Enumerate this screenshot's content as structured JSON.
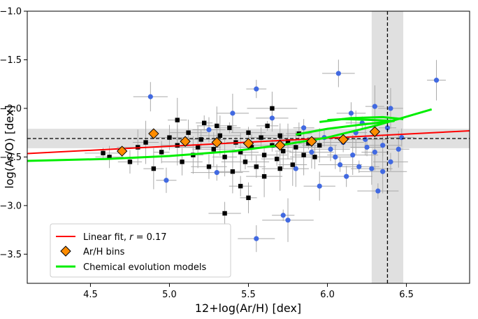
{
  "chart_data": {
    "type": "scatter",
    "xlabel": "12+log(Ar/H) [dex]",
    "ylabel": "log(Ar/O) [dex]",
    "xlim": [
      4.1,
      6.9
    ],
    "ylim": [
      -3.8,
      -1.0
    ],
    "xticks": [
      4.5,
      5.0,
      5.5,
      6.0,
      6.5
    ],
    "xtick_labels": [
      "4.5",
      "5.0",
      "5.5",
      "6.0",
      "6.5"
    ],
    "yticks": [
      -1.0,
      -1.5,
      -2.0,
      -2.5,
      -3.0,
      -3.5
    ],
    "ytick_labels": [
      "−1.0",
      "−1.5",
      "−2.0",
      "−2.5",
      "−3.0",
      "−3.5"
    ],
    "solar_reference": {
      "ar_h": 6.38,
      "ar_h_band": [
        6.28,
        6.48
      ],
      "ar_o": -2.31,
      "ar_o_band": [
        -2.41,
        -2.21
      ]
    },
    "linear_fit": {
      "name": "Linear fit, r = 0.17",
      "slope": 0.0835,
      "intercept": -2.807,
      "x_range": [
        4.1,
        6.9
      ]
    },
    "ar_h_bins": {
      "name": "Ar/H bins",
      "points": [
        {
          "x": 4.7,
          "y": -2.44
        },
        {
          "x": 4.9,
          "y": -2.26
        },
        {
          "x": 5.1,
          "y": -2.34
        },
        {
          "x": 5.3,
          "y": -2.35
        },
        {
          "x": 5.5,
          "y": -2.36
        },
        {
          "x": 5.7,
          "y": -2.38
        },
        {
          "x": 5.9,
          "y": -2.34
        },
        {
          "x": 6.1,
          "y": -2.32
        },
        {
          "x": 6.3,
          "y": -2.24
        }
      ]
    },
    "chemical_evolution_models": {
      "name": "Chemical evolution models",
      "tracks": [
        [
          [
            4.1,
            -2.54
          ],
          [
            4.6,
            -2.52
          ],
          [
            5.0,
            -2.49
          ],
          [
            5.4,
            -2.44
          ],
          [
            5.7,
            -2.38
          ],
          [
            6.0,
            -2.3
          ],
          [
            6.3,
            -2.18
          ],
          [
            6.66,
            -2.01
          ]
        ],
        [
          [
            5.8,
            -2.27
          ],
          [
            6.0,
            -2.21
          ],
          [
            6.2,
            -2.17
          ],
          [
            6.42,
            -2.13
          ],
          [
            6.3,
            -2.12
          ],
          [
            6.1,
            -2.11
          ],
          [
            6.0,
            -2.12
          ]
        ],
        [
          [
            5.95,
            -2.14
          ],
          [
            6.15,
            -2.1
          ],
          [
            6.35,
            -2.09
          ],
          [
            6.48,
            -2.11
          ]
        ]
      ]
    },
    "sample_points_blue": [
      {
        "x": 4.88,
        "y": -1.88
      },
      {
        "x": 5.55,
        "y": -1.8
      },
      {
        "x": 6.07,
        "y": -1.64
      },
      {
        "x": 6.69,
        "y": -1.71
      },
      {
        "x": 6.05,
        "y": -2.5
      },
      {
        "x": 6.3,
        "y": -2.45
      },
      {
        "x": 6.2,
        "y": -2.6
      },
      {
        "x": 6.4,
        "y": -2.55
      },
      {
        "x": 6.32,
        "y": -2.85
      },
      {
        "x": 5.55,
        "y": -3.34
      },
      {
        "x": 5.72,
        "y": -3.1
      },
      {
        "x": 5.75,
        "y": -3.15
      },
      {
        "x": 4.98,
        "y": -2.74
      },
      {
        "x": 5.3,
        "y": -2.66
      },
      {
        "x": 5.95,
        "y": -2.8
      },
      {
        "x": 6.1,
        "y": -2.35
      },
      {
        "x": 6.18,
        "y": -2.25
      },
      {
        "x": 6.25,
        "y": -2.4
      },
      {
        "x": 6.35,
        "y": -2.38
      },
      {
        "x": 6.45,
        "y": -2.42
      },
      {
        "x": 6.15,
        "y": -2.05
      },
      {
        "x": 6.3,
        "y": -1.98
      },
      {
        "x": 6.4,
        "y": -2.0
      },
      {
        "x": 5.98,
        "y": -2.3
      },
      {
        "x": 6.02,
        "y": -2.42
      },
      {
        "x": 5.9,
        "y": -2.45
      },
      {
        "x": 5.85,
        "y": -2.2
      },
      {
        "x": 6.22,
        "y": -2.15
      },
      {
        "x": 6.38,
        "y": -2.2
      },
      {
        "x": 6.28,
        "y": -2.62
      },
      {
        "x": 6.12,
        "y": -2.7
      },
      {
        "x": 5.65,
        "y": -2.1
      },
      {
        "x": 5.4,
        "y": -2.05
      },
      {
        "x": 5.25,
        "y": -2.22
      },
      {
        "x": 6.47,
        "y": -2.3
      },
      {
        "x": 6.08,
        "y": -2.58
      },
      {
        "x": 5.8,
        "y": -2.62
      },
      {
        "x": 6.35,
        "y": -2.65
      },
      {
        "x": 6.16,
        "y": -2.48
      },
      {
        "x": 6.24,
        "y": -2.32
      }
    ],
    "sample_points_black": [
      {
        "x": 4.58,
        "y": -2.46
      },
      {
        "x": 4.62,
        "y": -2.5
      },
      {
        "x": 4.75,
        "y": -2.55
      },
      {
        "x": 4.8,
        "y": -2.4
      },
      {
        "x": 4.85,
        "y": -2.35
      },
      {
        "x": 4.95,
        "y": -2.45
      },
      {
        "x": 5.0,
        "y": -2.3
      },
      {
        "x": 5.05,
        "y": -2.12
      },
      {
        "x": 5.05,
        "y": -2.38
      },
      {
        "x": 5.12,
        "y": -2.25
      },
      {
        "x": 5.15,
        "y": -2.48
      },
      {
        "x": 5.2,
        "y": -2.32
      },
      {
        "x": 5.22,
        "y": -2.15
      },
      {
        "x": 5.28,
        "y": -2.42
      },
      {
        "x": 5.32,
        "y": -2.28
      },
      {
        "x": 5.35,
        "y": -2.5
      },
      {
        "x": 5.38,
        "y": -2.2
      },
      {
        "x": 5.42,
        "y": -2.35
      },
      {
        "x": 5.45,
        "y": -2.45
      },
      {
        "x": 5.48,
        "y": -2.55
      },
      {
        "x": 5.5,
        "y": -2.25
      },
      {
        "x": 5.52,
        "y": -2.4
      },
      {
        "x": 5.55,
        "y": -2.6
      },
      {
        "x": 5.58,
        "y": -2.3
      },
      {
        "x": 5.6,
        "y": -2.48
      },
      {
        "x": 5.62,
        "y": -2.18
      },
      {
        "x": 5.65,
        "y": -2.38
      },
      {
        "x": 5.68,
        "y": -2.52
      },
      {
        "x": 5.7,
        "y": -2.28
      },
      {
        "x": 5.72,
        "y": -2.44
      },
      {
        "x": 5.75,
        "y": -2.34
      },
      {
        "x": 5.78,
        "y": -2.58
      },
      {
        "x": 5.8,
        "y": -2.4
      },
      {
        "x": 5.82,
        "y": -2.26
      },
      {
        "x": 5.85,
        "y": -2.48
      },
      {
        "x": 5.88,
        "y": -2.36
      },
      {
        "x": 5.45,
        "y": -2.8
      },
      {
        "x": 5.5,
        "y": -2.92
      },
      {
        "x": 5.35,
        "y": -3.08
      },
      {
        "x": 5.6,
        "y": -2.7
      },
      {
        "x": 5.25,
        "y": -2.6
      },
      {
        "x": 4.9,
        "y": -2.62
      },
      {
        "x": 5.08,
        "y": -2.55
      },
      {
        "x": 5.65,
        "y": -2.0
      },
      {
        "x": 5.4,
        "y": -2.65
      },
      {
        "x": 5.92,
        "y": -2.5
      },
      {
        "x": 5.95,
        "y": -2.38
      },
      {
        "x": 5.18,
        "y": -2.4
      },
      {
        "x": 5.7,
        "y": -2.62
      },
      {
        "x": 5.3,
        "y": -2.18
      }
    ],
    "legend": {
      "placement": "lower-left",
      "entries": [
        "Linear fit, r = 0.17",
        "Ar/H bins",
        "Chemical evolution models"
      ]
    },
    "colors": {
      "linear_fit": "#ff0000",
      "bins_fill": "#ff8c00",
      "models": "#00ee00",
      "blue_points": "#4169e1",
      "black_points": "#000000",
      "errorbars": "#a9a9a9",
      "reference_band": "#d3d3d3"
    }
  },
  "legend_labels": {
    "linear_fit_prefix": "Linear fit, ",
    "linear_fit_r": "r",
    "linear_fit_value": " = 0.17",
    "bins": "Ar/H bins",
    "models": "Chemical evolution models"
  }
}
